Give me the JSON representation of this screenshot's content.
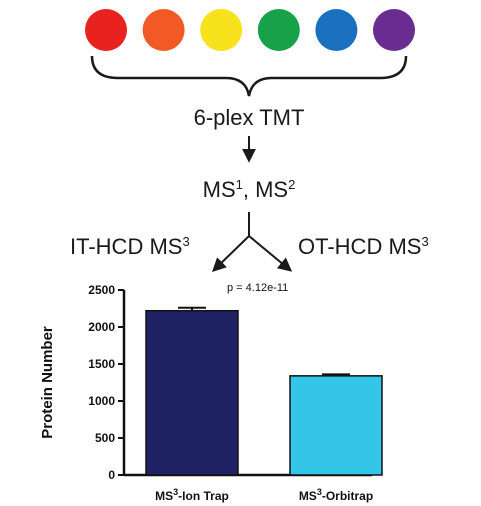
{
  "dots": [
    {
      "color": "#e8231f"
    },
    {
      "color": "#f15a24"
    },
    {
      "color": "#f7e21b"
    },
    {
      "color": "#17a24a"
    },
    {
      "color": "#1a6fbf"
    },
    {
      "color": "#6a2c91"
    }
  ],
  "workflow": {
    "step1": "6-plex TMT",
    "step2_base1": "MS",
    "step2_sup1": "1",
    "step2_sep": ", MS",
    "step2_sup2": "2",
    "left_branch": "IT-HCD MS",
    "left_branch_sup": "3",
    "right_branch": "OT-HCD MS",
    "right_branch_sup": "3",
    "pvalue": "p = 4.12e-11"
  },
  "chart_data": {
    "type": "bar",
    "categories": [
      {
        "base": "MS",
        "sup": "3",
        "rest": "-Ion Trap"
      },
      {
        "base": "MS",
        "sup": "3",
        "rest": "-Orbitrap"
      }
    ],
    "values": [
      2220,
      1340
    ],
    "errors": [
      40,
      20
    ],
    "colors": [
      "#1f2366",
      "#33c6e8"
    ],
    "ylabel": "Protein Number",
    "ylim": [
      0,
      2500
    ],
    "yticks": [
      0,
      500,
      1000,
      1500,
      2000,
      2500
    ]
  }
}
